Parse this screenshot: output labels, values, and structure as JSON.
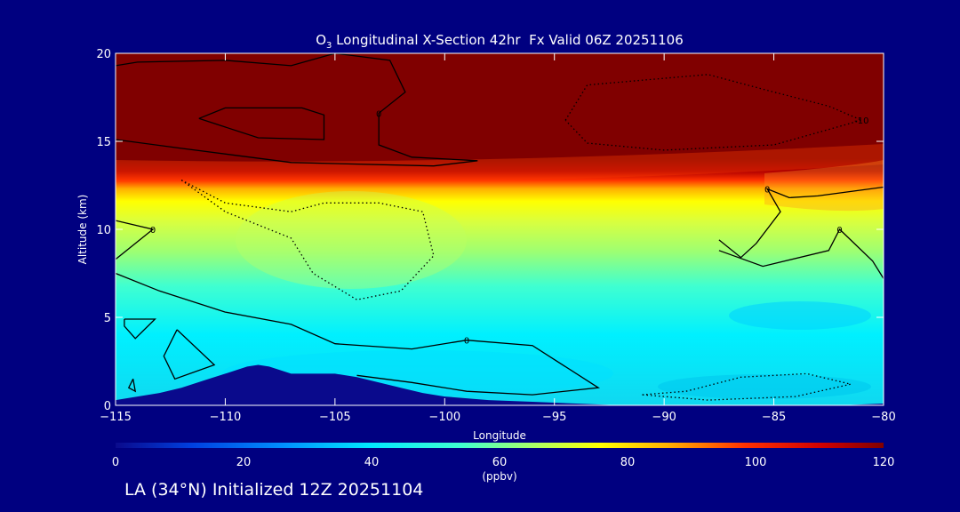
{
  "chart_data": {
    "type": "heatmap",
    "title": {
      "prefix": "O",
      "subscript": "3",
      "rest": " Longitudinal X-Section 42hr  Fx Valid 06Z 20251106"
    },
    "xlabel": "Longitude",
    "ylabel": "Altitude (km)",
    "xlim": [
      -115,
      -80
    ],
    "ylim": [
      0,
      20
    ],
    "xticks": [
      -115,
      -110,
      -105,
      -100,
      -95,
      -90,
      -85,
      -80
    ],
    "xtick_labels": [
      "−115",
      "−110",
      "−105",
      "−100",
      "−95",
      "−90",
      "−85",
      "−80"
    ],
    "yticks": [
      0,
      5,
      10,
      15,
      20
    ],
    "colorbar": {
      "min": 0,
      "max": 120,
      "ticks": [
        0,
        20,
        40,
        60,
        80,
        100,
        120
      ],
      "label": "(ppbv)"
    },
    "field_description": "ozone mixing ratio; ~120+ ppbv above 13-14 km, strong gradient 11-14 km, ~55-65 ppbv in mid troposphere, ~40-50 ppbv near surface, terrain (no data) near -112 to -102",
    "terrain": {
      "lon": [
        -115,
        -114,
        -113,
        -112,
        -111,
        -110,
        -109,
        -108.5,
        -108,
        -107,
        -106,
        -105,
        -104,
        -103,
        -102,
        -101,
        -100,
        -98,
        -96,
        -94,
        -92,
        -90,
        -88,
        -86,
        -84,
        -82,
        -80
      ],
      "alt_km": [
        0.3,
        0.5,
        0.7,
        1.0,
        1.4,
        1.8,
        2.2,
        2.3,
        2.2,
        1.8,
        1.8,
        1.8,
        1.6,
        1.3,
        1.0,
        0.7,
        0.5,
        0.3,
        0.2,
        0.1,
        0.0,
        0.0,
        0.0,
        0.0,
        0.0,
        0.0,
        0.1
      ]
    },
    "contours": [
      {
        "label": "0",
        "style": "solid",
        "points": [
          [
            -115,
            19.3
          ],
          [
            -114,
            19.5
          ],
          [
            -110,
            19.6
          ],
          [
            -107,
            19.3
          ],
          [
            -105,
            20
          ],
          [
            -102.5,
            19.6
          ],
          [
            -101.8,
            17.8
          ],
          [
            -103,
            16.6
          ],
          [
            -103,
            14.8
          ],
          [
            -101.5,
            14.1
          ],
          [
            -98.5,
            13.9
          ],
          [
            -100.5,
            13.6
          ],
          [
            -107,
            13.8
          ],
          [
            -112,
            14.6
          ],
          [
            -115,
            15.1
          ]
        ]
      },
      {
        "label": "",
        "style": "solid",
        "points": [
          [
            -111.2,
            16.3
          ],
          [
            -110,
            16.9
          ],
          [
            -106.5,
            16.9
          ],
          [
            -105.5,
            16.5
          ],
          [
            -105.5,
            15.1
          ],
          [
            -108.5,
            15.2
          ],
          [
            -111.2,
            16.3
          ]
        ]
      },
      {
        "label": "0",
        "style": "solid",
        "points": [
          [
            -115,
            10.5
          ],
          [
            -113.3,
            10.0
          ],
          [
            -115,
            8.3
          ]
        ]
      },
      {
        "label": "0",
        "style": "solid",
        "points": [
          [
            -115,
            7.5
          ],
          [
            -113,
            6.5
          ],
          [
            -110,
            5.3
          ],
          [
            -107,
            4.6
          ],
          [
            -105,
            3.5
          ],
          [
            -101.5,
            3.2
          ],
          [
            -99,
            3.7
          ],
          [
            -96,
            3.4
          ],
          [
            -93,
            1.0
          ],
          [
            -96,
            0.6
          ],
          [
            -99,
            0.8
          ],
          [
            -101.5,
            1.3
          ],
          [
            -104,
            1.7
          ]
        ]
      },
      {
        "label": "",
        "style": "solid",
        "points": [
          [
            -114.6,
            4.9
          ],
          [
            -113.2,
            4.9
          ],
          [
            -114.1,
            3.8
          ],
          [
            -114.6,
            4.5
          ],
          [
            -114.6,
            4.9
          ]
        ]
      },
      {
        "label": "",
        "style": "solid",
        "points": [
          [
            -112.2,
            4.3
          ],
          [
            -110.5,
            2.3
          ],
          [
            -112.3,
            1.5
          ],
          [
            -112.8,
            2.8
          ],
          [
            -112.2,
            4.3
          ]
        ]
      },
      {
        "label": "",
        "style": "solid",
        "points": [
          [
            -114.2,
            1.5
          ],
          [
            -114.1,
            0.8
          ],
          [
            -114.4,
            1.0
          ],
          [
            -114.2,
            1.5
          ]
        ]
      },
      {
        "label": "0",
        "style": "solid",
        "points": [
          [
            -87.5,
            9.4
          ],
          [
            -86.5,
            8.4
          ],
          [
            -85.8,
            9.2
          ],
          [
            -84.7,
            11.0
          ],
          [
            -85.3,
            12.3
          ],
          [
            -84.3,
            11.8
          ],
          [
            -83,
            11.9
          ],
          [
            -80,
            12.4
          ]
        ]
      },
      {
        "label": "0",
        "style": "solid",
        "points": [
          [
            -87.5,
            8.8
          ],
          [
            -85.5,
            7.9
          ],
          [
            -82.5,
            8.8
          ],
          [
            -82,
            10.0
          ],
          [
            -80.5,
            8.2
          ],
          [
            -80,
            7.2
          ]
        ]
      },
      {
        "label": "",
        "style": "dotted",
        "points": [
          [
            -112,
            12.8
          ],
          [
            -110,
            11.5
          ],
          [
            -107,
            11.0
          ],
          [
            -105.5,
            11.5
          ],
          [
            -103,
            11.5
          ],
          [
            -101,
            11.0
          ],
          [
            -100.5,
            8.5
          ],
          [
            -102,
            6.5
          ],
          [
            -104,
            6.0
          ],
          [
            -106,
            7.5
          ],
          [
            -107,
            9.5
          ],
          [
            -110,
            11.0
          ],
          [
            -112,
            12.8
          ]
        ]
      },
      {
        "label": "-10",
        "style": "dotted",
        "points": [
          [
            -94.5,
            16.2
          ],
          [
            -93.5,
            18.2
          ],
          [
            -88,
            18.8
          ],
          [
            -85,
            17.8
          ],
          [
            -82.5,
            17.0
          ],
          [
            -81,
            16.2
          ],
          [
            -85,
            14.8
          ],
          [
            -90,
            14.5
          ],
          [
            -93.5,
            14.9
          ],
          [
            -94.5,
            16.2
          ]
        ]
      },
      {
        "label": "",
        "style": "dotted",
        "points": [
          [
            -91,
            0.6
          ],
          [
            -89,
            0.8
          ],
          [
            -86.5,
            1.6
          ],
          [
            -83.5,
            1.8
          ],
          [
            -81.5,
            1.2
          ],
          [
            -84,
            0.5
          ],
          [
            -88,
            0.3
          ],
          [
            -91,
            0.6
          ]
        ]
      }
    ]
  },
  "footer": {
    "text": "LA (34°N) Initialized 12Z 20251104"
  },
  "colors": {
    "background": "#000080",
    "text": "#ffffff",
    "contour": "#000000"
  }
}
